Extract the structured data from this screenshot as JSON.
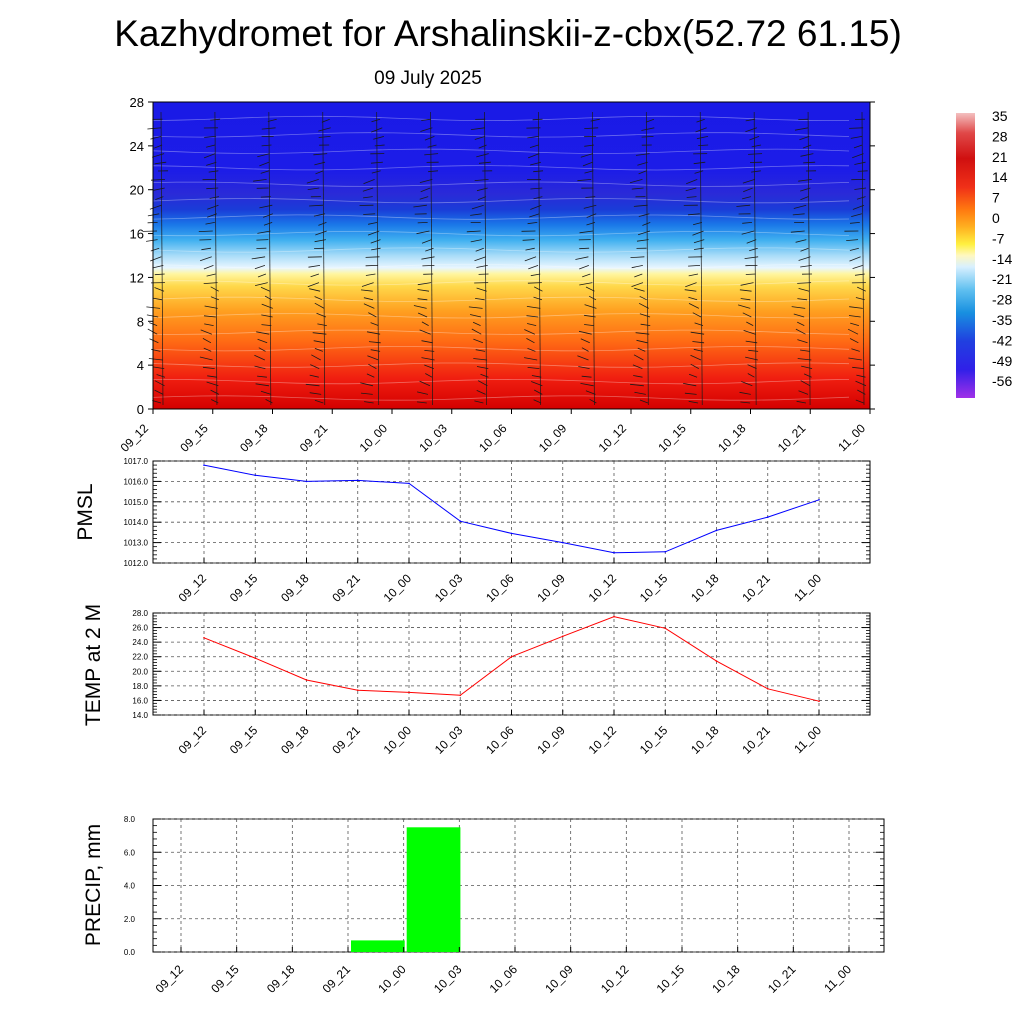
{
  "header": {
    "title": "Kazhydromet for Arshalinskii-z-cbx(52.72 61.15)",
    "date": "09 July 2025"
  },
  "time_labels": [
    "09_12",
    "09_15",
    "09_18",
    "09_21",
    "10_00",
    "10_03",
    "10_06",
    "10_09",
    "10_12",
    "10_15",
    "10_18",
    "10_21",
    "11_00"
  ],
  "colorbar": {
    "labels": [
      "35",
      "28",
      "21",
      "14",
      "7",
      "0",
      "-7",
      "-14",
      "-21",
      "-28",
      "-35",
      "-42",
      "-49",
      "-56"
    ]
  },
  "colors": {
    "pmsl_line": "#0000ff",
    "temp_line": "#ff0000",
    "precip_bar": "#00ff00"
  },
  "chart_data": [
    {
      "type": "heatmap",
      "name": "vertical-section",
      "ytick_labels": [
        "0",
        "4",
        "8",
        "12",
        "16",
        "20",
        "24",
        "28"
      ],
      "ylim": [
        0,
        28
      ],
      "x": [
        "09_12",
        "09_15",
        "09_18",
        "09_21",
        "10_00",
        "10_03",
        "10_06",
        "10_09",
        "10_12",
        "10_15",
        "10_18",
        "10_21",
        "11_00"
      ],
      "freezing_level_approx": 13.5,
      "notes": "temperature shading with wind barbs"
    },
    {
      "type": "line",
      "name": "pmsl",
      "ylabel": "PMSL",
      "ylim": [
        1012.0,
        1017.0
      ],
      "ytick_labels": [
        "1012.0",
        "1013.0",
        "1014.0",
        "1015.0",
        "1016.0",
        "1017.0"
      ],
      "x": [
        "09_12",
        "09_15",
        "09_18",
        "09_21",
        "10_00",
        "10_03",
        "10_06",
        "10_09",
        "10_12",
        "10_15",
        "10_18",
        "10_21",
        "11_00"
      ],
      "values": [
        1016.8,
        1016.3,
        1016.0,
        1016.05,
        1015.9,
        1014.05,
        1013.45,
        1013.0,
        1012.5,
        1012.55,
        1013.6,
        1014.25,
        1015.1
      ]
    },
    {
      "type": "line",
      "name": "temp2m",
      "ylabel": "TEMP at 2 M",
      "ylim": [
        14.0,
        28.0
      ],
      "ytick_labels": [
        "14.0",
        "16.0",
        "18.0",
        "20.0",
        "22.0",
        "24.0",
        "26.0",
        "28.0"
      ],
      "x": [
        "09_12",
        "09_15",
        "09_18",
        "09_21",
        "10_00",
        "10_03",
        "10_06",
        "10_09",
        "10_12",
        "10_15",
        "10_18",
        "10_21",
        "11_00"
      ],
      "values": [
        24.6,
        21.8,
        18.8,
        17.4,
        17.1,
        16.7,
        22.0,
        24.8,
        27.5,
        25.9,
        21.4,
        17.6,
        15.9
      ]
    },
    {
      "type": "bar",
      "name": "precip",
      "ylabel": "PRECIP, mm",
      "ylim": [
        0.0,
        8.0
      ],
      "ytick_labels": [
        "0.0",
        "2.0",
        "4.0",
        "6.0",
        "8.0"
      ],
      "x": [
        "09_12",
        "09_15",
        "09_18",
        "09_21",
        "10_00",
        "10_03",
        "10_06",
        "10_09",
        "10_12",
        "10_15",
        "10_18",
        "10_21",
        "11_00"
      ],
      "values": [
        0,
        0,
        0,
        0,
        0.7,
        7.5,
        0,
        0,
        0,
        0,
        0,
        0,
        0
      ]
    }
  ]
}
